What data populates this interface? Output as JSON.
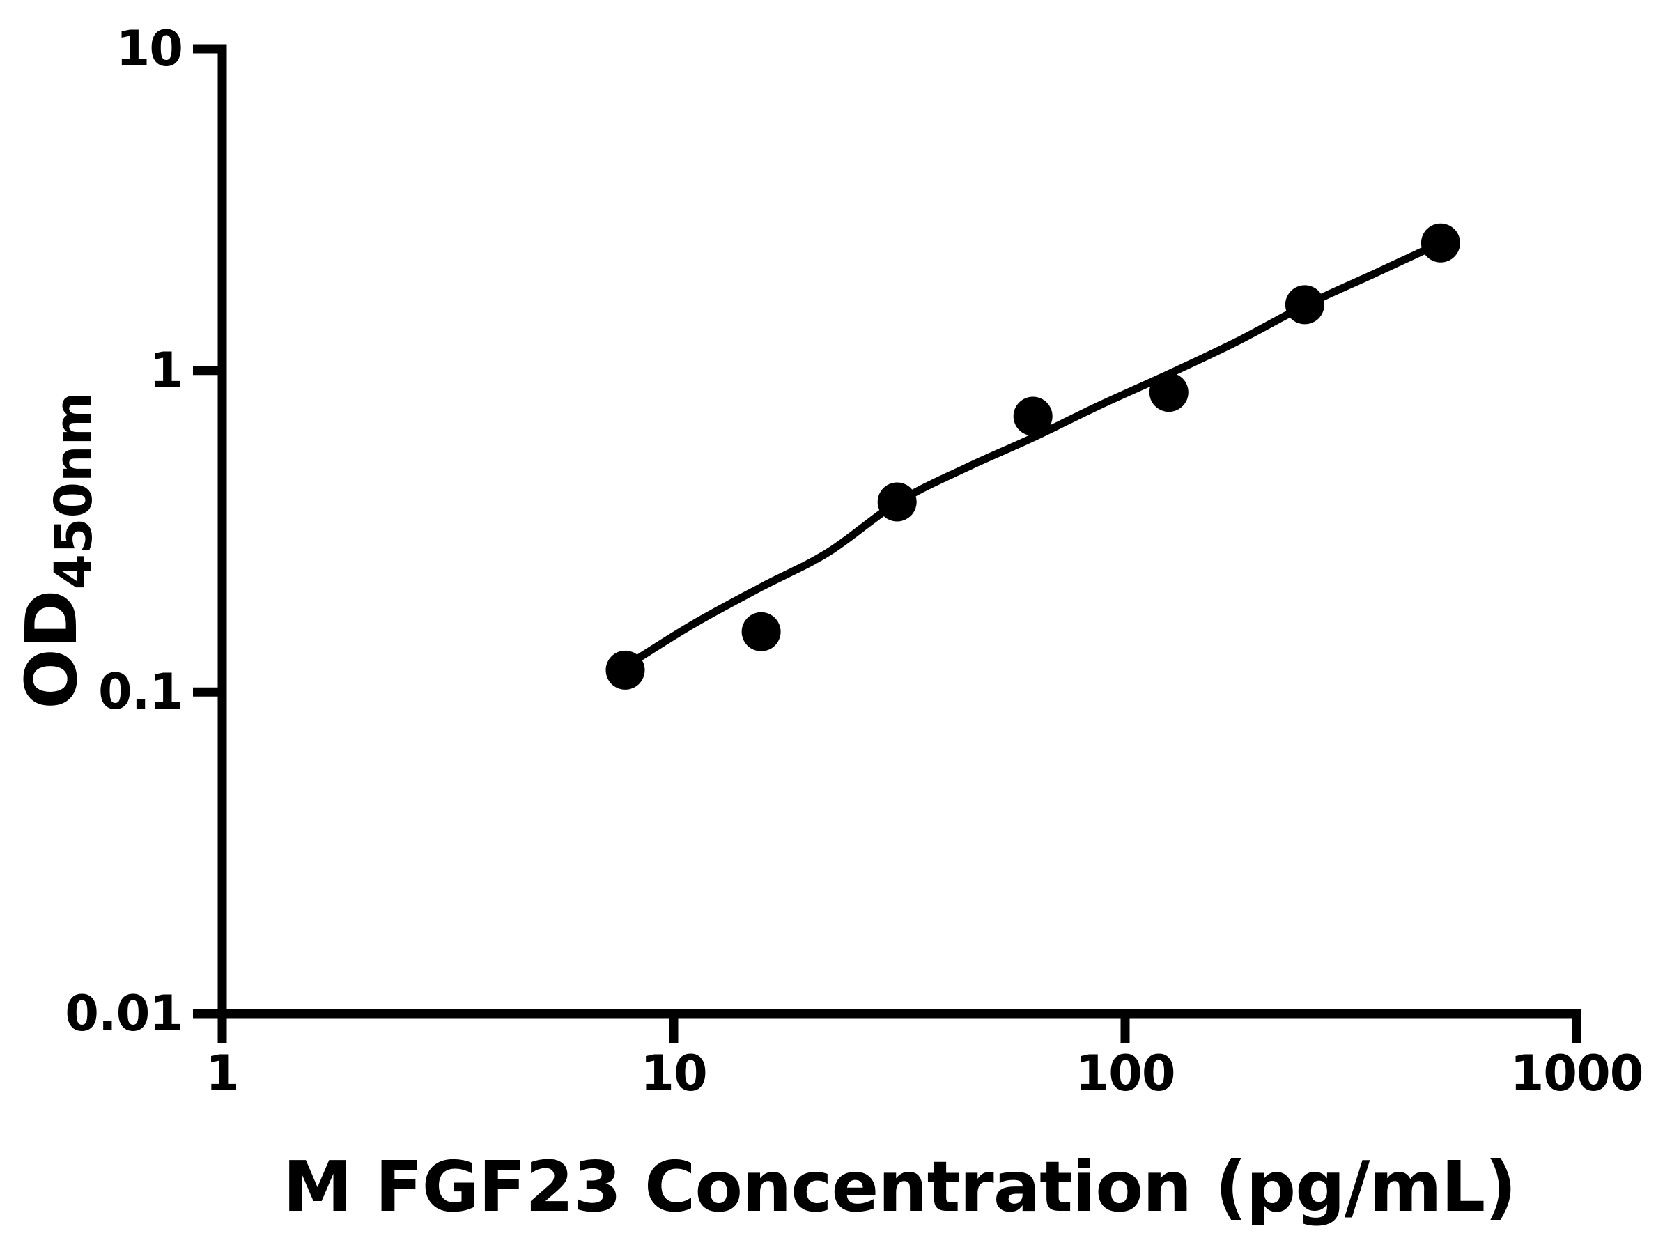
{
  "colors": {
    "foreground": "#000000",
    "background": "#ffffff"
  },
  "chart_data": {
    "type": "scatter",
    "title": "",
    "xlabel": "M FGF23 Concentration (pg/mL)",
    "ylabel_main": "OD",
    "ylabel_sub": "450nm",
    "x_scale": "log",
    "y_scale": "log",
    "xlim": [
      1,
      1000
    ],
    "ylim": [
      0.01,
      10
    ],
    "grid": false,
    "legend_position": "none",
    "x_ticks": [
      1,
      10,
      100,
      1000
    ],
    "x_tick_labels": [
      "1",
      "10",
      "100",
      "1000"
    ],
    "y_ticks": [
      0.01,
      0.1,
      1,
      10
    ],
    "y_tick_labels": [
      "0.01",
      "0.1",
      "1",
      "10"
    ],
    "series": [
      {
        "name": "standard-points",
        "type": "scatter",
        "marker": "filled-circle",
        "color": "#000000",
        "points": [
          [
            7.8125,
            0.117
          ],
          [
            15.625,
            0.154
          ],
          [
            31.25,
            0.39
          ],
          [
            62.5,
            0.72
          ],
          [
            125,
            0.855
          ],
          [
            250,
            1.6
          ],
          [
            500,
            2.49
          ]
        ]
      },
      {
        "name": "fit-curve",
        "type": "line",
        "color": "#000000",
        "points": [
          [
            7.8125,
            0.12
          ],
          [
            11,
            0.162
          ],
          [
            15.625,
            0.212
          ],
          [
            22,
            0.272
          ],
          [
            31.25,
            0.388
          ],
          [
            44,
            0.495
          ],
          [
            62.5,
            0.618
          ],
          [
            88,
            0.78
          ],
          [
            125,
            0.975
          ],
          [
            177,
            1.23
          ],
          [
            250,
            1.59
          ],
          [
            354,
            1.99
          ],
          [
            500,
            2.49
          ]
        ]
      }
    ]
  }
}
